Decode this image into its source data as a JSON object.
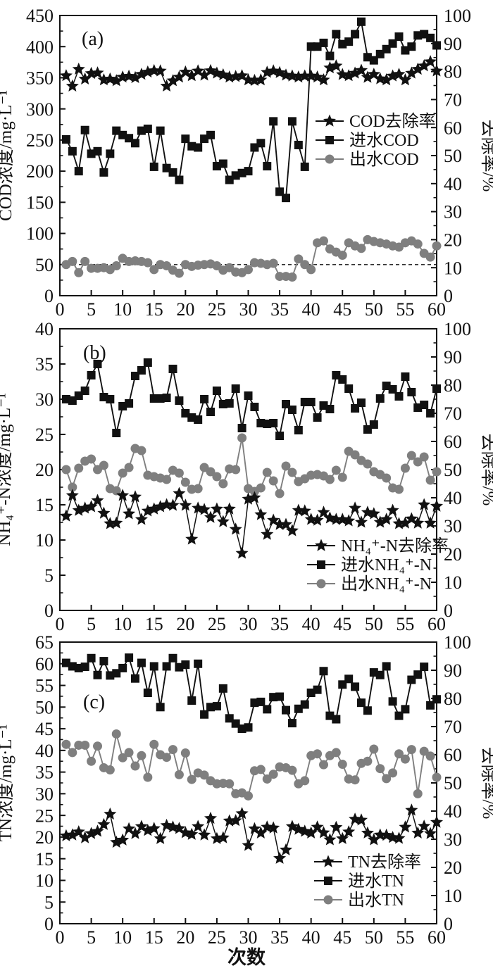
{
  "figure": {
    "x_axis_label": "次数",
    "colors": {
      "black": "#111111",
      "gray": "#7f7f7f",
      "background": "#ffffff"
    }
  },
  "chart_data": [
    {
      "type": "line",
      "panel_label": "(a)",
      "ylabel_left": "COD浓度/mg·L⁻¹",
      "ylabel_right": "去除率/%",
      "xlabel": "",
      "x_range": [
        0,
        60
      ],
      "x_tick_step": 5,
      "y_left_range": [
        0,
        450
      ],
      "y_left_tick_step": 50,
      "y_right_range": [
        0,
        100
      ],
      "y_right_tick_step": 10,
      "x_start": 1,
      "ref_line_left": 50,
      "legend_position": "right-middle",
      "series": [
        {
          "id": "cod-removal-rate",
          "name": "COD去除率",
          "axis": "right",
          "marker": "star",
          "color": "#111111",
          "values": [
            78.5,
            74.8,
            80.8,
            77.3,
            79.3,
            79.5,
            77.0,
            77.3,
            76.7,
            78.0,
            78.3,
            77.8,
            79.0,
            79.8,
            80.3,
            80.2,
            74.8,
            76.7,
            78.0,
            79.8,
            78.5,
            80.2,
            78.7,
            80.3,
            79.4,
            78.8,
            78.0,
            78.2,
            78.5,
            77.0,
            76.8,
            77.0,
            79.7,
            80.2,
            79.6,
            78.7,
            78.4,
            78.0,
            78.4,
            78.4,
            78.0,
            77.0,
            81.3,
            82.0,
            78.9,
            78.5,
            79.4,
            80.4,
            77.9,
            79.0,
            77.4,
            77.0,
            78.4,
            79.0,
            77.0,
            79.4,
            80.8,
            82.0,
            83.5,
            80.2
          ]
        },
        {
          "id": "influent-cod",
          "name": "进水COD",
          "axis": "left",
          "marker": "square",
          "color": "#111111",
          "values": [
            251,
            232,
            200,
            266,
            228,
            232,
            198,
            228,
            265,
            258,
            253,
            245,
            265,
            268,
            207,
            265,
            205,
            198,
            186,
            252,
            240,
            238,
            252,
            258,
            208,
            212,
            186,
            193,
            197,
            200,
            238,
            245,
            208,
            280,
            167,
            157,
            280,
            242,
            207,
            400,
            400,
            406,
            385,
            420,
            404,
            408,
            420,
            440,
            383,
            378,
            388,
            396,
            405,
            416,
            394,
            400,
            418,
            420,
            414,
            402
          ]
        },
        {
          "id": "effluent-cod",
          "name": "出水COD",
          "axis": "left",
          "marker": "circle",
          "color": "#7f7f7f",
          "values": [
            50,
            55,
            37,
            55,
            44,
            44,
            45,
            42,
            48,
            60,
            55,
            56,
            55,
            53,
            42,
            50,
            48,
            41,
            36,
            50,
            47,
            49,
            50,
            51,
            48,
            41,
            45,
            38,
            37,
            42,
            53,
            52,
            50,
            52,
            31,
            31,
            30,
            59,
            50,
            42,
            85,
            88,
            75,
            70,
            65,
            85,
            80,
            76,
            90,
            87,
            85,
            83,
            80,
            78,
            85,
            88,
            83,
            68,
            62,
            80
          ]
        }
      ]
    },
    {
      "type": "line",
      "panel_label": "(b)",
      "ylabel_left": "NH₄⁺-N浓度/mg·L⁻¹",
      "ylabel_right": "去除率/%",
      "xlabel": "",
      "x_range": [
        0,
        60
      ],
      "x_tick_step": 5,
      "y_left_range": [
        0,
        40
      ],
      "y_left_tick_step": 5,
      "y_right_range": [
        0,
        100
      ],
      "y_right_tick_step": 10,
      "x_start": 1,
      "ref_line_left": null,
      "legend_position": "right-bottom",
      "series": [
        {
          "id": "nh4-removal-rate",
          "name": "NH₄⁺-N去除率",
          "axis": "right",
          "marker": "star",
          "color": "#111111",
          "values": [
            33.5,
            40.8,
            35.5,
            36.3,
            36.8,
            39.0,
            34.5,
            30.8,
            31.0,
            40.8,
            34.3,
            40.3,
            32.3,
            35.3,
            36.0,
            36.8,
            37.5,
            37.3,
            41.5,
            37.3,
            25.3,
            36.3,
            35.8,
            33.0,
            36.0,
            31.5,
            36.0,
            28.8,
            20.3,
            39.5,
            40.0,
            34.0,
            27.0,
            32.0,
            30.5,
            30.5,
            28.3,
            35.5,
            35.3,
            32.3,
            32.0,
            34.8,
            32.8,
            32.3,
            32.3,
            31.8,
            36.3,
            31.3,
            34.8,
            34.3,
            31.3,
            32.3,
            35.5,
            30.8,
            31.0,
            32.5,
            31.0,
            37.5,
            31.0,
            37.0
          ]
        },
        {
          "id": "influent-nh4",
          "name": "进水NH₄⁺-N",
          "axis": "left",
          "marker": "square",
          "color": "#111111",
          "values": [
            30.0,
            29.8,
            30.5,
            31.2,
            33.4,
            35.0,
            30.3,
            30.0,
            25.2,
            29.0,
            29.4,
            33.3,
            34.1,
            35.2,
            30.1,
            30.1,
            30.2,
            34.3,
            29.8,
            28.0,
            27.4,
            27.1,
            30.0,
            28.2,
            31.2,
            29.3,
            29.4,
            31.5,
            25.9,
            30.5,
            28.9,
            26.6,
            26.5,
            26.6,
            24.8,
            29.3,
            28.5,
            25.6,
            29.6,
            29.6,
            27.4,
            29.1,
            28.6,
            33.4,
            32.8,
            31.5,
            28.7,
            29.5,
            25.7,
            26.4,
            30.1,
            31.9,
            31.4,
            30.4,
            33.2,
            31.0,
            28.8,
            29.2,
            28.0,
            31.5
          ]
        },
        {
          "id": "effluent-nh4",
          "name": "出水NH₄⁺-N",
          "axis": "left",
          "marker": "circle",
          "color": "#7f7f7f",
          "values": [
            20.0,
            17.5,
            20.2,
            21.2,
            21.5,
            20.0,
            20.6,
            17.3,
            17.0,
            19.5,
            20.3,
            23.0,
            22.7,
            19.2,
            19.0,
            18.8,
            18.6,
            19.9,
            19.5,
            18.2,
            17.2,
            17.3,
            20.3,
            19.7,
            19.0,
            18.0,
            20.1,
            20.0,
            24.5,
            17.3,
            16.9,
            17.4,
            19.6,
            18.4,
            16.6,
            20.5,
            19.6,
            18.3,
            18.7,
            19.2,
            19.3,
            19.1,
            18.6,
            19.9,
            18.9,
            22.6,
            22.1,
            21.3,
            20.8,
            19.7,
            19.3,
            18.8,
            17.4,
            17.2,
            20.2,
            22.0,
            21.1,
            21.8,
            18.5,
            19.7
          ]
        }
      ]
    },
    {
      "type": "line",
      "panel_label": "(c)",
      "ylabel_left": "TN浓度/mg·L⁻¹",
      "ylabel_right": "去除率/%",
      "xlabel": "次数",
      "x_range": [
        0,
        60
      ],
      "x_tick_step": 5,
      "y_left_range": [
        0,
        65
      ],
      "y_left_tick_step": 5,
      "y_right_range": [
        0,
        100
      ],
      "y_right_tick_step": 10,
      "x_start": 1,
      "ref_line_left": null,
      "legend_position": "right-bottom",
      "series": [
        {
          "id": "tn-removal-rate",
          "name": "TN去除率",
          "axis": "right",
          "marker": "star",
          "color": "#111111",
          "values": [
            31.2,
            31.5,
            32.6,
            30.5,
            32.0,
            32.8,
            35.2,
            38.9,
            28.9,
            29.7,
            33.7,
            32.0,
            34.5,
            33.1,
            33.8,
            30.2,
            34.9,
            34.3,
            33.8,
            32.3,
            31.7,
            34.5,
            31.5,
            37.4,
            30.2,
            30.5,
            36.5,
            36.6,
            39.1,
            27.8,
            33.7,
            32.2,
            34.3,
            34.0,
            23.2,
            26.2,
            34.5,
            33.5,
            32.8,
            32.2,
            34.3,
            32.3,
            29.8,
            34.2,
            30.2,
            32.6,
            37.1,
            36.8,
            32.2,
            29.8,
            31.5,
            31.4,
            30.6,
            30.3,
            34.3,
            40.3,
            32.2,
            34.6,
            32.0,
            36.0
          ]
        },
        {
          "id": "influent-tn",
          "name": "进水TN",
          "axis": "left",
          "marker": "square",
          "color": "#111111",
          "values": [
            60.2,
            59.4,
            59.0,
            59.3,
            61.3,
            57.4,
            60.6,
            57.3,
            57.8,
            59.0,
            61.4,
            56.6,
            60.2,
            53.3,
            59.4,
            50.0,
            59.4,
            61.3,
            59.2,
            59.8,
            51.5,
            60.0,
            48.3,
            50.0,
            50.2,
            54.3,
            47.4,
            46.2,
            45.0,
            45.3,
            51.0,
            51.2,
            49.5,
            52.3,
            52.4,
            49.3,
            46.3,
            49.6,
            50.6,
            53.3,
            54.0,
            58.3,
            48.0,
            47.2,
            55.2,
            56.5,
            54.7,
            51.0,
            49.2,
            58.0,
            57.4,
            59.4,
            51.3,
            48.0,
            49.5,
            56.3,
            57.5,
            59.3,
            50.4,
            51.8
          ]
        },
        {
          "id": "effluent-tn",
          "name": "出水TN",
          "axis": "left",
          "marker": "circle",
          "color": "#7f7f7f",
          "values": [
            41.4,
            39.5,
            41.2,
            41.2,
            37.5,
            41.0,
            36.0,
            35.5,
            43.8,
            38.3,
            39.5,
            36.4,
            38.8,
            33.8,
            41.4,
            39.0,
            38.4,
            40.2,
            34.4,
            39.4,
            33.3,
            34.8,
            34.3,
            33.0,
            32.3,
            32.4,
            32.3,
            30.0,
            30.2,
            29.5,
            35.3,
            35.6,
            33.4,
            34.5,
            36.2,
            36.0,
            35.4,
            32.3,
            33.0,
            38.8,
            39.2,
            36.7,
            38.8,
            39.5,
            36.8,
            33.4,
            33.2,
            37.0,
            37.5,
            40.3,
            35.8,
            33.5,
            34.8,
            39.2,
            38.0,
            40.2,
            30.0,
            39.8,
            38.7,
            33.8
          ]
        }
      ]
    }
  ]
}
